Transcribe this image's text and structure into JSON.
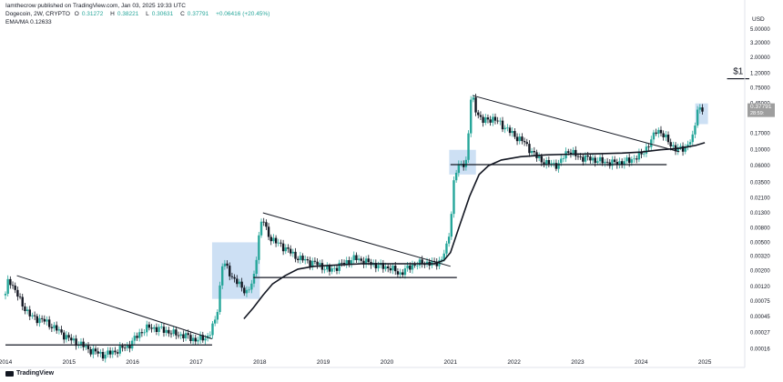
{
  "header": {
    "published_line": "Iamthecrow published on TradingView.com, Jan 03, 2025 19:33 UTC",
    "symbol": "Dogecoin, 2W, CRYPTO",
    "ohlc": [
      {
        "label": "O",
        "value": "0.31272"
      },
      {
        "label": "H",
        "value": "0.38221"
      },
      {
        "label": "L",
        "value": "0.30631"
      },
      {
        "label": "C",
        "value": "0.37791"
      },
      {
        "label": "",
        "value": "+0.06416 (+20.45%)"
      }
    ],
    "indicator_label": "EMA/MA",
    "indicator_value": "0.12633"
  },
  "footer": {
    "brand": "TradingView"
  },
  "colors": {
    "up": "#26a69a",
    "down": "#131722",
    "highlight": "#bcd5f0",
    "price_tag": "#9e9e9e"
  },
  "chart_data": {
    "type": "candlestick",
    "currency_label": "USD",
    "scale": "log",
    "ylim": [
      0.00011,
      9.0
    ],
    "xlim": [
      2014.0,
      2025.6
    ],
    "y_ticks": [
      {
        "value": 5.0,
        "label": "5.00000"
      },
      {
        "value": 3.2,
        "label": "3.20000"
      },
      {
        "value": 2.0,
        "label": "2.00000"
      },
      {
        "value": 1.2,
        "label": "1.20000"
      },
      {
        "value": 0.75,
        "label": "0.75000"
      },
      {
        "value": 0.45,
        "label": "0.45000"
      },
      {
        "value": 0.17,
        "label": "0.17000"
      },
      {
        "value": 0.1,
        "label": "0.10000"
      },
      {
        "value": 0.06,
        "label": "0.06000"
      },
      {
        "value": 0.035,
        "label": "0.03500"
      },
      {
        "value": 0.021,
        "label": "0.02100"
      },
      {
        "value": 0.013,
        "label": "0.01300"
      },
      {
        "value": 0.008,
        "label": "0.00800"
      },
      {
        "value": 0.005,
        "label": "0.00500"
      },
      {
        "value": 0.0032,
        "label": "0.00320"
      },
      {
        "value": 0.002,
        "label": "0.00200"
      },
      {
        "value": 0.0012,
        "label": "0.00120"
      },
      {
        "value": 0.00075,
        "label": "0.00075"
      },
      {
        "value": 0.00045,
        "label": "0.00045"
      },
      {
        "value": 0.00027,
        "label": "0.00027"
      },
      {
        "value": 0.00016,
        "label": "0.00016"
      }
    ],
    "x_ticks": [
      {
        "value": 2014.0,
        "label": "2014"
      },
      {
        "value": 2015.0,
        "label": "2015"
      },
      {
        "value": 2016.0,
        "label": "2016"
      },
      {
        "value": 2017.0,
        "label": "2017"
      },
      {
        "value": 2018.0,
        "label": "2018"
      },
      {
        "value": 2019.0,
        "label": "2019"
      },
      {
        "value": 2020.0,
        "label": "2020"
      },
      {
        "value": 2021.0,
        "label": "2021"
      },
      {
        "value": 2022.0,
        "label": "2022"
      },
      {
        "value": 2023.0,
        "label": "2023"
      },
      {
        "value": 2024.0,
        "label": "2024"
      },
      {
        "value": 2025.0,
        "label": "2025"
      }
    ],
    "last_price": {
      "value": 0.37791,
      "label": "0.37791",
      "countdown": "28:59:"
    },
    "price_path": [
      [
        2014.0,
        0.0009
      ],
      [
        2014.05,
        0.0016
      ],
      [
        2014.12,
        0.0012
      ],
      [
        2014.25,
        0.0007
      ],
      [
        2014.4,
        0.00045
      ],
      [
        2014.6,
        0.0004
      ],
      [
        2014.8,
        0.0003
      ],
      [
        2015.0,
        0.00022
      ],
      [
        2015.2,
        0.00018
      ],
      [
        2015.35,
        0.00015
      ],
      [
        2015.55,
        0.00013
      ],
      [
        2015.75,
        0.00015
      ],
      [
        2015.95,
        0.00018
      ],
      [
        2016.1,
        0.00026
      ],
      [
        2016.25,
        0.00032
      ],
      [
        2016.45,
        0.0003
      ],
      [
        2016.65,
        0.00026
      ],
      [
        2016.85,
        0.00024
      ],
      [
        2017.0,
        0.00021
      ],
      [
        2017.2,
        0.00024
      ],
      [
        2017.32,
        0.00045
      ],
      [
        2017.42,
        0.0028
      ],
      [
        2017.5,
        0.002
      ],
      [
        2017.6,
        0.0015
      ],
      [
        2017.7,
        0.0012
      ],
      [
        2017.8,
        0.001
      ],
      [
        2017.9,
        0.0014
      ],
      [
        2018.0,
        0.008
      ],
      [
        2018.05,
        0.011
      ],
      [
        2018.12,
        0.0065
      ],
      [
        2018.25,
        0.005
      ],
      [
        2018.4,
        0.0042
      ],
      [
        2018.55,
        0.0032
      ],
      [
        2018.7,
        0.0028
      ],
      [
        2018.9,
        0.0025
      ],
      [
        2019.1,
        0.002
      ],
      [
        2019.3,
        0.0025
      ],
      [
        2019.5,
        0.003
      ],
      [
        2019.7,
        0.0026
      ],
      [
        2019.9,
        0.0023
      ],
      [
        2020.05,
        0.0022
      ],
      [
        2020.2,
        0.0018
      ],
      [
        2020.4,
        0.0024
      ],
      [
        2020.6,
        0.0026
      ],
      [
        2020.75,
        0.0025
      ],
      [
        2020.85,
        0.0028
      ],
      [
        2020.95,
        0.0045
      ],
      [
        2021.0,
        0.009
      ],
      [
        2021.05,
        0.035
      ],
      [
        2021.1,
        0.055
      ],
      [
        2021.25,
        0.07
      ],
      [
        2021.33,
        0.65
      ],
      [
        2021.38,
        0.4
      ],
      [
        2021.5,
        0.25
      ],
      [
        2021.65,
        0.28
      ],
      [
        2021.8,
        0.23
      ],
      [
        2022.0,
        0.16
      ],
      [
        2022.15,
        0.13
      ],
      [
        2022.35,
        0.08
      ],
      [
        2022.5,
        0.065
      ],
      [
        2022.7,
        0.062
      ],
      [
        2022.85,
        0.1
      ],
      [
        2023.0,
        0.08
      ],
      [
        2023.2,
        0.075
      ],
      [
        2023.4,
        0.068
      ],
      [
        2023.6,
        0.065
      ],
      [
        2023.8,
        0.07
      ],
      [
        2024.0,
        0.085
      ],
      [
        2024.15,
        0.13
      ],
      [
        2024.25,
        0.2
      ],
      [
        2024.4,
        0.14
      ],
      [
        2024.55,
        0.1
      ],
      [
        2024.7,
        0.11
      ],
      [
        2024.82,
        0.15
      ],
      [
        2024.88,
        0.4
      ],
      [
        2024.95,
        0.36
      ],
      [
        2025.0,
        0.378
      ]
    ],
    "ema_ma_path": [
      [
        2017.75,
        0.00042
      ],
      [
        2017.9,
        0.0006
      ],
      [
        2018.05,
        0.0009
      ],
      [
        2018.2,
        0.0013
      ],
      [
        2018.4,
        0.0017
      ],
      [
        2018.6,
        0.0021
      ],
      [
        2018.85,
        0.0023
      ],
      [
        2019.2,
        0.0024
      ],
      [
        2019.6,
        0.0025
      ],
      [
        2020.0,
        0.0025
      ],
      [
        2020.4,
        0.0025
      ],
      [
        2020.75,
        0.0025
      ],
      [
        2020.9,
        0.0028
      ],
      [
        2021.0,
        0.0036
      ],
      [
        2021.15,
        0.009
      ],
      [
        2021.3,
        0.022
      ],
      [
        2021.45,
        0.045
      ],
      [
        2021.6,
        0.06
      ],
      [
        2021.8,
        0.072
      ],
      [
        2022.1,
        0.08
      ],
      [
        2022.5,
        0.085
      ],
      [
        2022.9,
        0.087
      ],
      [
        2023.3,
        0.088
      ],
      [
        2023.7,
        0.09
      ],
      [
        2024.0,
        0.093
      ],
      [
        2024.3,
        0.1
      ],
      [
        2024.6,
        0.105
      ],
      [
        2024.85,
        0.115
      ],
      [
        2025.0,
        0.126
      ]
    ],
    "trendlines": [
      {
        "from": [
          2014.18,
          0.0017
        ],
        "to": [
          2017.25,
          0.00022
        ]
      },
      {
        "from": [
          2018.05,
          0.013
        ],
        "to": [
          2021.0,
          0.0023
        ]
      },
      {
        "from": [
          2021.35,
          0.58
        ],
        "to": [
          2024.6,
          0.094
        ]
      }
    ],
    "support_lines": [
      {
        "from": [
          2014.0,
          0.00018
        ],
        "to": [
          2017.25,
          0.00018
        ]
      },
      {
        "from": [
          2017.9,
          0.0016
        ],
        "to": [
          2021.1,
          0.0016
        ]
      },
      {
        "from": [
          2021.0,
          0.062
        ],
        "to": [
          2024.4,
          0.062
        ]
      }
    ],
    "highlight_boxes": [
      {
        "x0": 2017.25,
        "x1": 2018.0,
        "y0": 0.0008,
        "y1": 0.005
      },
      {
        "x0": 2020.98,
        "x1": 2021.4,
        "y0": 0.045,
        "y1": 0.1
      },
      {
        "x0": 2024.85,
        "x1": 2025.05,
        "y0": 0.23,
        "y1": 0.45
      }
    ],
    "annotations": [
      {
        "text": "$1",
        "value": 1.0,
        "x0": 2025.35,
        "x1": 2025.7
      }
    ]
  }
}
